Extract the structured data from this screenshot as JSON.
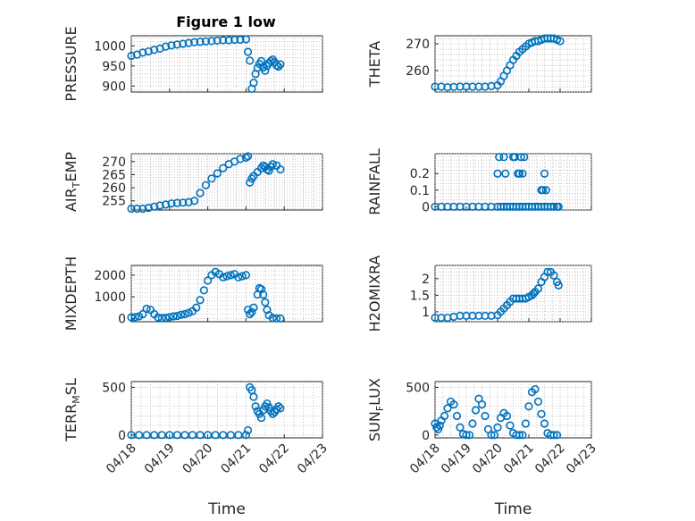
{
  "figure_title": "Figure 1 low",
  "colors": {
    "marker": "#0072BD",
    "axis": "#262626",
    "grid": "#b0b0b0"
  },
  "chart_data": [
    {
      "type": "scatter",
      "ylabel": "PRESSURE",
      "xlabel": "",
      "title": "Figure 1 low",
      "xlim": [
        0,
        5
      ],
      "ylim": [
        885,
        1025
      ],
      "yticks": [
        900,
        950,
        1000
      ],
      "xtick_labels": [
        "04/18",
        "04/19",
        "04/20",
        "04/21",
        "04/22",
        "04/23"
      ],
      "show_xtick_labels": false,
      "grid": true,
      "x": [
        0,
        0.15,
        0.3,
        0.45,
        0.6,
        0.75,
        0.9,
        1.05,
        1.2,
        1.35,
        1.5,
        1.65,
        1.8,
        1.95,
        2.1,
        2.25,
        2.4,
        2.55,
        2.7,
        2.85,
        3.0,
        3.05,
        3.1,
        3.15,
        3.2,
        3.25,
        3.3,
        3.35,
        3.4,
        3.45,
        3.5,
        3.55,
        3.6,
        3.65,
        3.7,
        3.75,
        3.8,
        3.85,
        3.9
      ],
      "y": [
        975,
        978,
        983,
        986,
        990,
        993,
        998,
        1001,
        1003,
        1005,
        1007,
        1009,
        1010,
        1011,
        1012,
        1013,
        1014,
        1014,
        1015,
        1015,
        1016,
        985,
        963,
        893,
        908,
        930,
        945,
        955,
        962,
        946,
        938,
        950,
        957,
        962,
        966,
        959,
        951,
        948,
        954
      ]
    },
    {
      "type": "scatter",
      "ylabel": "THETA",
      "xlabel": "",
      "xlim": [
        0,
        5
      ],
      "ylim": [
        252,
        273
      ],
      "yticks": [
        260,
        270
      ],
      "xtick_labels": [
        "04/18",
        "04/19",
        "04/20",
        "04/21",
        "04/22",
        "04/23"
      ],
      "show_xtick_labels": false,
      "grid": true,
      "x": [
        0,
        0.2,
        0.4,
        0.6,
        0.8,
        1.0,
        1.2,
        1.4,
        1.6,
        1.8,
        2.0,
        2.1,
        2.2,
        2.3,
        2.4,
        2.5,
        2.6,
        2.7,
        2.8,
        2.9,
        3.0,
        3.1,
        3.2,
        3.3,
        3.4,
        3.5,
        3.6,
        3.7,
        3.8,
        3.9,
        4.0
      ],
      "y": [
        254,
        254,
        253.8,
        253.9,
        254,
        254,
        254,
        254,
        254,
        254.2,
        254.5,
        256,
        258,
        260,
        262,
        264,
        265.5,
        267,
        268,
        269,
        270,
        270.5,
        271,
        271,
        271.5,
        272,
        272,
        272,
        272,
        271.5,
        271
      ]
    },
    {
      "type": "scatter",
      "ylabel": "AIR_TEMP",
      "xlabel": "",
      "xlim": [
        0,
        5
      ],
      "ylim": [
        251.5,
        273
      ],
      "yticks": [
        255,
        260,
        265,
        270
      ],
      "xtick_labels": [
        "04/18",
        "04/19",
        "04/20",
        "04/21",
        "04/22",
        "04/23"
      ],
      "show_xtick_labels": false,
      "grid": true,
      "x": [
        0,
        0.15,
        0.3,
        0.45,
        0.6,
        0.75,
        0.9,
        1.05,
        1.2,
        1.35,
        1.5,
        1.65,
        1.8,
        1.95,
        2.1,
        2.25,
        2.4,
        2.55,
        2.7,
        2.85,
        3.0,
        3.05,
        3.1,
        3.15,
        3.2,
        3.3,
        3.4,
        3.45,
        3.5,
        3.55,
        3.6,
        3.65,
        3.7,
        3.8,
        3.9
      ],
      "y": [
        252,
        252,
        252,
        252.3,
        252.8,
        253.2,
        253.6,
        254,
        254.2,
        254.3,
        254.5,
        255,
        258,
        261,
        263.5,
        265.5,
        267.5,
        269,
        270,
        271,
        271.5,
        272,
        262,
        263.5,
        264.5,
        266,
        267.5,
        268.5,
        268,
        267,
        266.5,
        268,
        269,
        268.5,
        267
      ]
    },
    {
      "type": "scatter",
      "ylabel": "RAINFALL",
      "xlabel": "",
      "xlim": [
        0,
        5
      ],
      "ylim": [
        -0.02,
        0.32
      ],
      "yticks": [
        0,
        0.1,
        0.2
      ],
      "xtick_labels": [
        "04/18",
        "04/19",
        "04/20",
        "04/21",
        "04/22",
        "04/23"
      ],
      "show_xtick_labels": false,
      "grid": true,
      "x": [
        0,
        0.2,
        0.4,
        0.6,
        0.8,
        1.0,
        1.2,
        1.4,
        1.6,
        1.8,
        2.0,
        2.1,
        2.2,
        2.3,
        2.4,
        2.5,
        2.6,
        2.7,
        2.8,
        2.9,
        3.0,
        3.1,
        3.2,
        3.3,
        3.4,
        3.5,
        3.6,
        3.7,
        3.8,
        3.9,
        3.95,
        2.0,
        2.05,
        2.2,
        2.25,
        2.5,
        2.55,
        2.75,
        2.8,
        2.85,
        2.65,
        2.7,
        3.4,
        3.45,
        3.55,
        3.5
      ],
      "y": [
        0,
        0,
        0,
        0,
        0,
        0,
        0,
        0,
        0,
        0,
        0,
        0,
        0,
        0,
        0,
        0,
        0,
        0,
        0,
        0,
        0,
        0,
        0,
        0,
        0,
        0,
        0,
        0,
        0,
        0,
        0,
        0.2,
        0.3,
        0.3,
        0.2,
        0.3,
        0.3,
        0.3,
        0.2,
        0.3,
        0.2,
        0.2,
        0.1,
        0.1,
        0.1,
        0.2
      ]
    },
    {
      "type": "scatter",
      "ylabel": "MIXDEPTH",
      "xlabel": "",
      "xlim": [
        0,
        5
      ],
      "ylim": [
        -150,
        2450
      ],
      "yticks": [
        0,
        1000,
        2000
      ],
      "xtick_labels": [
        "04/18",
        "04/19",
        "04/20",
        "04/21",
        "04/22",
        "04/23"
      ],
      "show_xtick_labels": false,
      "grid": true,
      "x": [
        0,
        0.1,
        0.2,
        0.3,
        0.4,
        0.5,
        0.6,
        0.7,
        0.8,
        0.9,
        1.0,
        1.1,
        1.2,
        1.3,
        1.4,
        1.5,
        1.6,
        1.7,
        1.8,
        1.9,
        2.0,
        2.1,
        2.2,
        2.3,
        2.4,
        2.5,
        2.6,
        2.7,
        2.8,
        2.9,
        3.0,
        3.05,
        3.1,
        3.15,
        3.2,
        3.3,
        3.35,
        3.4,
        3.45,
        3.5,
        3.55,
        3.6,
        3.7,
        3.8,
        3.9
      ],
      "y": [
        50,
        60,
        100,
        200,
        450,
        400,
        200,
        50,
        20,
        30,
        60,
        100,
        120,
        170,
        200,
        260,
        340,
        500,
        850,
        1300,
        1750,
        2000,
        2150,
        2050,
        1900,
        1950,
        2000,
        2050,
        1900,
        1950,
        2000,
        400,
        200,
        300,
        500,
        1100,
        1400,
        1350,
        1100,
        750,
        400,
        150,
        20,
        0,
        0
      ]
    },
    {
      "type": "scatter",
      "ylabel": "H2OMIXRA",
      "xlabel": "",
      "xlim": [
        0,
        5
      ],
      "ylim": [
        0.7,
        2.4
      ],
      "yticks": [
        1,
        1.5,
        2
      ],
      "xtick_labels": [
        "04/18",
        "04/19",
        "04/20",
        "04/21",
        "04/22",
        "04/23"
      ],
      "show_xtick_labels": false,
      "grid": true,
      "x": [
        0,
        0.2,
        0.4,
        0.6,
        0.8,
        1.0,
        1.2,
        1.4,
        1.6,
        1.8,
        2.0,
        2.1,
        2.2,
        2.3,
        2.4,
        2.5,
        2.6,
        2.7,
        2.8,
        2.9,
        3.0,
        3.1,
        3.15,
        3.2,
        3.3,
        3.4,
        3.5,
        3.6,
        3.7,
        3.8,
        3.9,
        3.95
      ],
      "y": [
        0.82,
        0.82,
        0.82,
        0.85,
        0.88,
        0.88,
        0.88,
        0.88,
        0.88,
        0.88,
        0.9,
        1.0,
        1.1,
        1.2,
        1.3,
        1.4,
        1.4,
        1.4,
        1.4,
        1.4,
        1.45,
        1.5,
        1.55,
        1.6,
        1.7,
        1.9,
        2.05,
        2.2,
        2.2,
        2.1,
        1.9,
        1.8
      ]
    },
    {
      "type": "scatter",
      "ylabel": "TERR_MSL",
      "xlabel": "Time",
      "xlim": [
        0,
        5
      ],
      "ylim": [
        -30,
        560
      ],
      "yticks": [
        0,
        500
      ],
      "xtick_labels": [
        "04/18",
        "04/19",
        "04/20",
        "04/21",
        "04/22",
        "04/23"
      ],
      "show_xtick_labels": true,
      "grid": true,
      "x": [
        0,
        0.2,
        0.4,
        0.6,
        0.8,
        1.0,
        1.2,
        1.4,
        1.6,
        1.8,
        2.0,
        2.2,
        2.4,
        2.6,
        2.8,
        3.0,
        3.05,
        3.1,
        3.15,
        3.2,
        3.25,
        3.3,
        3.35,
        3.4,
        3.45,
        3.5,
        3.55,
        3.6,
        3.65,
        3.7,
        3.75,
        3.8,
        3.85,
        3.9
      ],
      "y": [
        0,
        0,
        0,
        0,
        0,
        0,
        0,
        0,
        0,
        0,
        0,
        0,
        0,
        0,
        0,
        0,
        50,
        500,
        470,
        400,
        300,
        250,
        220,
        180,
        260,
        300,
        330,
        290,
        250,
        220,
        240,
        270,
        300,
        280
      ]
    },
    {
      "type": "scatter",
      "ylabel": "SUN_FLUX",
      "xlabel": "Time",
      "xlim": [
        0,
        5
      ],
      "ylim": [
        -30,
        560
      ],
      "yticks": [
        0,
        500
      ],
      "xtick_labels": [
        "04/18",
        "04/19",
        "04/20",
        "04/21",
        "04/22",
        "04/23"
      ],
      "show_xtick_labels": true,
      "grid": true,
      "x": [
        0,
        0.05,
        0.1,
        0.15,
        0.2,
        0.3,
        0.4,
        0.5,
        0.6,
        0.7,
        0.8,
        0.9,
        1.0,
        1.1,
        1.2,
        1.3,
        1.4,
        1.5,
        1.6,
        1.7,
        1.8,
        1.9,
        2.0,
        2.1,
        2.2,
        2.3,
        2.4,
        2.5,
        2.6,
        2.7,
        2.8,
        2.9,
        3.0,
        3.1,
        3.2,
        3.3,
        3.4,
        3.5,
        3.6,
        3.7,
        3.8,
        3.9
      ],
      "y": [
        120,
        80,
        60,
        100,
        150,
        200,
        280,
        350,
        320,
        200,
        80,
        10,
        0,
        0,
        120,
        260,
        380,
        320,
        200,
        60,
        0,
        0,
        80,
        180,
        230,
        200,
        100,
        20,
        0,
        0,
        0,
        120,
        300,
        450,
        480,
        350,
        220,
        120,
        20,
        0,
        0,
        0
      ]
    }
  ]
}
